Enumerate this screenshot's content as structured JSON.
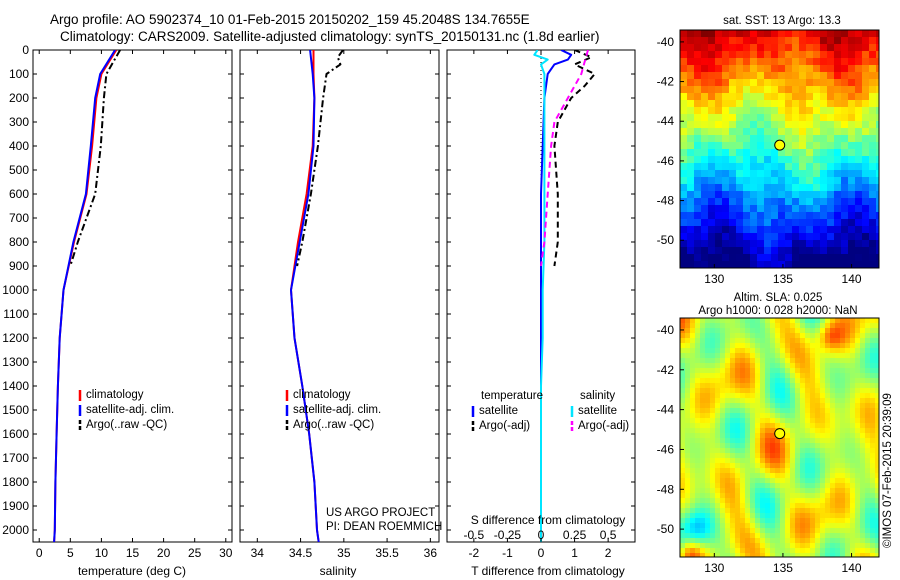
{
  "header": {
    "line1": "Argo profile: AO 5902374_10 01-Feb-2015 20150202_159 45.2048S 134.7655E",
    "line2": "Climatology: CARS2009. Satellite-adjusted climatology: synTS_20150131.nc (1.8d earlier)"
  },
  "credit": {
    "line1": "US ARGO PROJECT",
    "line2": "PI: DEAN ROEMMICH",
    "side_stamp": "©IMOS 07-Feb-2015 20:39:09"
  },
  "colors": {
    "climatology": "#ff0000",
    "satellite": "#0000ff",
    "argo": "#000000",
    "sal_satellite": "#00e5ff",
    "sal_argo": "#ff00ff",
    "float_marker": "#ffff00"
  },
  "chart_data": [
    {
      "type": "line",
      "id": "temperature",
      "xlabel": "temperature (deg C)",
      "ylabel": "",
      "xlim": [
        -1,
        31
      ],
      "ylim": [
        2050,
        0
      ],
      "xticks": [
        0,
        5,
        10,
        15,
        20,
        25,
        30
      ],
      "yticks": [
        0,
        100,
        200,
        300,
        400,
        500,
        600,
        700,
        800,
        900,
        1000,
        1100,
        1200,
        1300,
        1400,
        1500,
        1600,
        1700,
        1800,
        1900,
        2000
      ],
      "legend": {
        "placement": "lower-center",
        "entries": [
          {
            "label": "climatology",
            "color": "#ff0000",
            "style": "solid"
          },
          {
            "label": "satellite-adj. clim.",
            "color": "#0000ff",
            "style": "solid"
          },
          {
            "label": "Argo(..raw -QC)",
            "color": "#000000",
            "style": "dashdot"
          }
        ]
      },
      "series": [
        {
          "name": "climatology",
          "color": "#ff0000",
          "style": "solid",
          "depth": [
            0,
            100,
            200,
            400,
            600,
            800,
            1000,
            1200,
            1400,
            1600,
            1800,
            2000,
            2050
          ],
          "values": [
            12.4,
            10.0,
            9.2,
            8.5,
            7.6,
            5.6,
            3.9,
            3.3,
            3.0,
            2.8,
            2.6,
            2.5,
            2.4
          ]
        },
        {
          "name": "satellite-adj. clim.",
          "color": "#0000ff",
          "style": "solid",
          "depth": [
            0,
            100,
            200,
            400,
            600,
            800,
            1000,
            1200,
            1400,
            1600,
            1800,
            2000,
            2050
          ],
          "values": [
            12.2,
            9.8,
            9.0,
            8.3,
            7.5,
            5.5,
            3.9,
            3.3,
            3.0,
            2.8,
            2.6,
            2.5,
            2.4
          ]
        },
        {
          "name": "Argo(..raw -QC)",
          "color": "#000000",
          "style": "dashdot",
          "depth": [
            0,
            100,
            200,
            400,
            600,
            800,
            900
          ],
          "values": [
            13.0,
            10.8,
            10.4,
            9.9,
            9.0,
            6.2,
            5.0
          ]
        }
      ]
    },
    {
      "type": "line",
      "id": "salinity",
      "xlabel": "salinity",
      "ylabel": "",
      "xlim": [
        33.8,
        36.1
      ],
      "ylim": [
        2050,
        0
      ],
      "xticks": [
        34,
        34.5,
        35,
        35.5,
        36
      ],
      "xticklabels": [
        "34",
        "34.5",
        "35",
        "35.5",
        "36"
      ],
      "legend": {
        "placement": "lower-center",
        "entries": [
          {
            "label": "climatology",
            "color": "#ff0000",
            "style": "solid"
          },
          {
            "label": "satellite-adj. clim.",
            "color": "#0000ff",
            "style": "solid"
          },
          {
            "label": "Argo(..raw -QC)",
            "color": "#000000",
            "style": "dashdot"
          }
        ]
      },
      "series": [
        {
          "name": "climatology",
          "color": "#ff0000",
          "style": "solid",
          "depth": [
            0,
            100,
            200,
            400,
            600,
            800,
            1000,
            1200,
            1400,
            1600,
            1800,
            2000,
            2050
          ],
          "values": [
            34.65,
            34.65,
            34.66,
            34.64,
            34.57,
            34.47,
            34.39,
            34.43,
            34.52,
            34.6,
            34.66,
            34.69,
            34.71
          ]
        },
        {
          "name": "satellite-adj. clim.",
          "color": "#0000ff",
          "style": "solid",
          "depth": [
            0,
            100,
            200,
            400,
            600,
            800,
            1000,
            1200,
            1400,
            1600,
            1800,
            2000,
            2050
          ],
          "values": [
            34.61,
            34.64,
            34.66,
            34.65,
            34.59,
            34.49,
            34.39,
            34.43,
            34.52,
            34.6,
            34.66,
            34.69,
            34.71
          ]
        },
        {
          "name": "Argo(..raw -QC)",
          "color": "#000000",
          "style": "dashdot",
          "depth": [
            0,
            30,
            60,
            100,
            200,
            400,
            600,
            800,
            900
          ],
          "values": [
            34.99,
            34.93,
            34.96,
            34.8,
            34.76,
            34.7,
            34.62,
            34.52,
            34.46
          ]
        }
      ]
    },
    {
      "type": "line",
      "id": "difference",
      "xlabel": "T difference from climatology",
      "xlabel2": "S difference from climatology",
      "ylabel": "",
      "xlim": [
        -2.8,
        2.8
      ],
      "ylim": [
        2050,
        0
      ],
      "xticks": [
        -2,
        -1,
        0,
        1,
        2
      ],
      "xticklabels": [
        "-2",
        "-1",
        "0",
        "1",
        "2"
      ],
      "sticks": [
        -2,
        -1,
        0,
        1,
        2
      ],
      "sticklabels": [
        "-0.5",
        "-0.25",
        "0",
        "0.25",
        "0.5"
      ],
      "legend": {
        "placement": "lower-center",
        "groups": [
          {
            "heading": "temperature",
            "entries": [
              {
                "label": "satellite",
                "color": "#0000ff",
                "style": "solid"
              },
              {
                "label": "Argo(-adj)",
                "color": "#000000",
                "style": "dashed"
              }
            ]
          },
          {
            "heading": "salinity",
            "entries": [
              {
                "label": "satellite",
                "color": "#00e5ff",
                "style": "solid"
              },
              {
                "label": "Argo(-adj)",
                "color": "#ff00ff",
                "style": "dashed"
              }
            ]
          }
        ]
      },
      "series": [
        {
          "name": "temperature satellite",
          "color": "#0000ff",
          "style": "solid",
          "depth": [
            0,
            20,
            40,
            60,
            100,
            200,
            400,
            600,
            800,
            1000,
            1200,
            1400,
            1600,
            1800,
            2000,
            2050
          ],
          "values": [
            0.6,
            0.9,
            0.8,
            0.4,
            0.2,
            0.1,
            0.05,
            0.0,
            0.0,
            0.0,
            0.0,
            0.0,
            0.0,
            0.0,
            0.0,
            0.0
          ]
        },
        {
          "name": "temperature Argo(-adj)",
          "color": "#000000",
          "style": "dashed",
          "depth": [
            0,
            30,
            60,
            100,
            150,
            200,
            300,
            400,
            600,
            800,
            900
          ],
          "values": [
            1.0,
            1.5,
            1.0,
            1.6,
            1.3,
            0.9,
            0.5,
            0.4,
            0.5,
            0.5,
            0.4
          ]
        },
        {
          "name": "salinity satellite",
          "color": "#00e5ff",
          "style": "solid",
          "depth": [
            0,
            20,
            40,
            60,
            100,
            200,
            400,
            600,
            800,
            1000,
            1200,
            1400,
            1600,
            1800,
            2000,
            2050
          ],
          "values": [
            -0.1,
            -0.2,
            0.2,
            0.0,
            0.1,
            0.1,
            0.1,
            0.1,
            0.1,
            0.05,
            0.05,
            0.0,
            0.0,
            0.0,
            0.0,
            0.0
          ]
        },
        {
          "name": "salinity Argo(-adj)",
          "color": "#ff00ff",
          "style": "dashed",
          "depth": [
            0,
            50,
            100,
            150,
            200,
            300,
            400,
            500,
            600,
            800,
            900
          ],
          "values": [
            1.4,
            1.3,
            1.2,
            1.0,
            0.8,
            0.4,
            0.3,
            0.25,
            0.2,
            0.1,
            0.0
          ]
        }
      ]
    },
    {
      "type": "heatmap",
      "id": "sst-map",
      "title": "sat. SST: 13 Argo: 13.3",
      "xlim": [
        127.5,
        142
      ],
      "ylim": [
        -51.4,
        -39.4
      ],
      "xticks": [
        130,
        135,
        140
      ],
      "yticks": [
        -40,
        -42,
        -44,
        -46,
        -48,
        -50
      ],
      "colormap": "jet",
      "float_position": {
        "lon": 134.7655,
        "lat": -45.2048
      }
    },
    {
      "type": "heatmap",
      "id": "sla-map",
      "title": "Altim. SLA: 0.025",
      "subtitle": "Argo h1000: 0.028 h2000: NaN",
      "xlim": [
        127.5,
        142
      ],
      "ylim": [
        -51.4,
        -39.4
      ],
      "xticks": [
        130,
        135,
        140
      ],
      "yticks": [
        -40,
        -42,
        -44,
        -46,
        -48,
        -50
      ],
      "colormap": "jet",
      "float_position": {
        "lon": 134.7655,
        "lat": -45.2048
      }
    }
  ]
}
